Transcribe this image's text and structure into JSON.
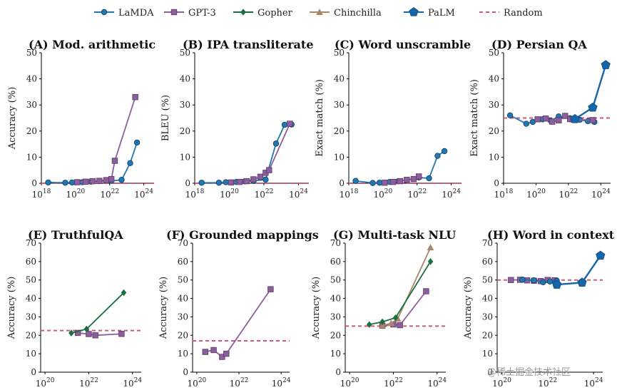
{
  "legend": [
    {
      "name": "LaMDA",
      "color": "#1f77b4",
      "marker": "circle",
      "dashed": false
    },
    {
      "name": "GPT-3",
      "color": "#8c5e9c",
      "marker": "square",
      "dashed": false
    },
    {
      "name": "Gopher",
      "color": "#1b6e3f",
      "marker": "diamond",
      "dashed": false
    },
    {
      "name": "Chinchilla",
      "color": "#a88967",
      "marker": "triangle",
      "dashed": false
    },
    {
      "name": "PaLM",
      "color": "#1566a8",
      "marker": "pentagon",
      "dashed": false
    },
    {
      "name": "Random",
      "color": "#d05a7e",
      "marker": "none",
      "dashed": true
    }
  ],
  "watermark": "@稀土掘金技术社区",
  "chart_data": [
    {
      "id": "A",
      "type": "line",
      "title": "(A) Mod. arithmetic",
      "ylabel": "Accuracy (%)",
      "xscale": "log10",
      "xlim": [
        18,
        24.6
      ],
      "xticks": [
        18,
        20,
        22,
        24
      ],
      "ylim": [
        0,
        50
      ],
      "yticks": [
        0,
        10,
        20,
        30,
        40,
        50
      ],
      "random": 0,
      "series": [
        {
          "name": "LaMDA",
          "x": [
            18.4,
            19.4,
            19.8,
            20.4,
            20.9,
            21.4,
            22.1,
            22.7,
            23.2,
            23.6
          ],
          "y": [
            0.3,
            0.2,
            0.3,
            0.4,
            0.6,
            0.8,
            0.9,
            1.3,
            7.7,
            15.6
          ]
        },
        {
          "name": "GPT-3",
          "x": [
            20.1,
            20.6,
            21.0,
            21.4,
            21.8,
            22.1,
            22.3,
            23.5
          ],
          "y": [
            0.4,
            0.6,
            0.8,
            0.9,
            1.2,
            1.6,
            8.6,
            33.0
          ]
        }
      ]
    },
    {
      "id": "B",
      "type": "line",
      "title": "(B) IPA transliterate",
      "ylabel": "BLEU (%)",
      "xscale": "log10",
      "xlim": [
        18,
        24.6
      ],
      "xticks": [
        18,
        20,
        22,
        24
      ],
      "ylim": [
        0,
        50
      ],
      "yticks": [
        0,
        10,
        20,
        30,
        40,
        50
      ],
      "random": 0,
      "series": [
        {
          "name": "LaMDA",
          "x": [
            18.4,
            19.4,
            19.8,
            20.4,
            20.9,
            21.4,
            22.1,
            22.7,
            23.2,
            23.6
          ],
          "y": [
            0.2,
            0.2,
            0.4,
            0.5,
            0.7,
            0.9,
            1.4,
            15.2,
            22.4,
            22.5
          ]
        },
        {
          "name": "GPT-3",
          "x": [
            20.1,
            20.6,
            21.0,
            21.4,
            21.8,
            22.1,
            22.3,
            23.5
          ],
          "y": [
            0.3,
            0.5,
            0.8,
            1.5,
            2.5,
            4.0,
            5.0,
            22.8
          ]
        }
      ]
    },
    {
      "id": "C",
      "type": "line",
      "title": "(C) Word unscramble",
      "ylabel": "Exact match (%)",
      "xscale": "log10",
      "xlim": [
        18,
        24.6
      ],
      "xticks": [
        18,
        20,
        22,
        24
      ],
      "ylim": [
        0,
        50
      ],
      "yticks": [
        0,
        10,
        20,
        30,
        40,
        50
      ],
      "random": 0,
      "series": [
        {
          "name": "LaMDA",
          "x": [
            18.4,
            19.4,
            19.8,
            20.4,
            20.9,
            21.4,
            22.1,
            22.7,
            23.2,
            23.6
          ],
          "y": [
            0.9,
            0.1,
            0.2,
            0.5,
            0.8,
            1.2,
            2.2,
            1.9,
            10.5,
            12.3
          ]
        },
        {
          "name": "GPT-3",
          "x": [
            20.1,
            20.6,
            21.0,
            21.4,
            21.8,
            22.1
          ],
          "y": [
            0.2,
            0.5,
            0.8,
            1.3,
            1.6,
            2.6
          ]
        }
      ]
    },
    {
      "id": "D",
      "type": "line",
      "title": "(D) Persian QA",
      "ylabel": "Exact match (%)",
      "xscale": "log10",
      "xlim": [
        18,
        24.6
      ],
      "xticks": [
        18,
        20,
        22,
        24
      ],
      "ylim": [
        0,
        50
      ],
      "yticks": [
        0,
        10,
        20,
        30,
        40,
        50
      ],
      "random": 25,
      "series": [
        {
          "name": "LaMDA",
          "x": [
            18.4,
            19.4,
            19.8,
            20.4,
            20.9,
            21.4,
            22.1,
            22.7,
            23.2,
            23.6
          ],
          "y": [
            26.0,
            22.8,
            23.5,
            24.5,
            24.0,
            25.6,
            24.9,
            24.3,
            23.8,
            23.5
          ]
        },
        {
          "name": "GPT-3",
          "x": [
            20.1,
            20.6,
            21.0,
            21.4,
            21.8,
            22.1,
            22.3,
            23.5
          ],
          "y": [
            24.5,
            24.8,
            23.6,
            24.1,
            25.8,
            24.6,
            24.4,
            24.2
          ]
        },
        {
          "name": "PaLM",
          "x": [
            22.4,
            23.5,
            24.3
          ],
          "y": [
            24.6,
            29.0,
            45.3
          ]
        }
      ]
    },
    {
      "id": "E",
      "type": "line",
      "title": "(E) TruthfulQA",
      "ylabel": "Accuracy (%)",
      "xscale": "log10",
      "xlim": [
        19.8,
        24.4
      ],
      "xticks": [
        20,
        22,
        24
      ],
      "ylim": [
        0,
        70
      ],
      "yticks": [
        0,
        10,
        20,
        30,
        40,
        50,
        60,
        70
      ],
      "random": 22.6,
      "series": [
        {
          "name": "GPT-3",
          "x": [
            21.5,
            22.0,
            22.3,
            23.5
          ],
          "y": [
            21.3,
            20.7,
            20.0,
            20.8
          ]
        },
        {
          "name": "Gopher",
          "x": [
            21.2,
            21.9,
            23.6
          ],
          "y": [
            21.2,
            23.4,
            43.1
          ]
        }
      ]
    },
    {
      "id": "F",
      "type": "line",
      "title": "(F) Grounded mappings",
      "ylabel": "Accuracy (%)",
      "xscale": "log10",
      "xlim": [
        19.8,
        24.4
      ],
      "xticks": [
        20,
        22,
        24
      ],
      "ylim": [
        0,
        70
      ],
      "yticks": [
        0,
        10,
        20,
        30,
        40,
        50,
        60,
        70
      ],
      "random": 17,
      "series": [
        {
          "name": "GPT-3",
          "x": [
            20.4,
            20.8,
            21.2,
            21.4,
            23.5
          ],
          "y": [
            11.0,
            12.0,
            8.3,
            10.0,
            45.0
          ]
        }
      ]
    },
    {
      "id": "G",
      "type": "line",
      "title": "(G) Multi-task NLU",
      "ylabel": "Accuracy (%)",
      "xscale": "log10",
      "xlim": [
        19.8,
        24.4
      ],
      "xticks": [
        20,
        22,
        24
      ],
      "ylim": [
        0,
        70
      ],
      "yticks": [
        0,
        10,
        20,
        30,
        40,
        50,
        60,
        70
      ],
      "random": 25,
      "series": [
        {
          "name": "GPT-3",
          "x": [
            21.5,
            22.0,
            22.3,
            23.5
          ],
          "y": [
            25.2,
            25.9,
            25.5,
            43.9
          ]
        },
        {
          "name": "Chinchilla",
          "x": [
            21.5,
            21.9,
            22.2,
            23.7
          ],
          "y": [
            25.3,
            26.5,
            29.0,
            67.6
          ]
        },
        {
          "name": "Gopher",
          "x": [
            20.9,
            21.5,
            22.1,
            23.7
          ],
          "y": [
            25.8,
            27.3,
            29.5,
            60.0
          ]
        }
      ]
    },
    {
      "id": "H",
      "type": "line",
      "title": "(H) Word in context",
      "ylabel": "Accuracy (%)",
      "xscale": "log10",
      "xlim": [
        19.8,
        24.4
      ],
      "xticks": [
        20,
        22,
        24
      ],
      "ylim": [
        0,
        70
      ],
      "yticks": [
        0,
        10,
        20,
        30,
        40,
        50,
        60,
        70
      ],
      "random": 50,
      "series": [
        {
          "name": "GPT-3",
          "x": [
            20.4,
            20.8,
            21.1,
            21.4,
            21.7,
            22.0,
            22.3
          ],
          "y": [
            50.0,
            50.1,
            49.8,
            49.6,
            49.4,
            50.0,
            49.8
          ]
        },
        {
          "name": "LaMDA",
          "x": [
            20.9,
            21.4,
            21.8,
            22.1,
            22.4
          ],
          "y": [
            50.2,
            49.8,
            48.8,
            49.2,
            49.6
          ]
        },
        {
          "name": "PaLM",
          "x": [
            22.4,
            23.5,
            24.3
          ],
          "y": [
            47.5,
            48.6,
            63.2
          ]
        }
      ]
    }
  ]
}
